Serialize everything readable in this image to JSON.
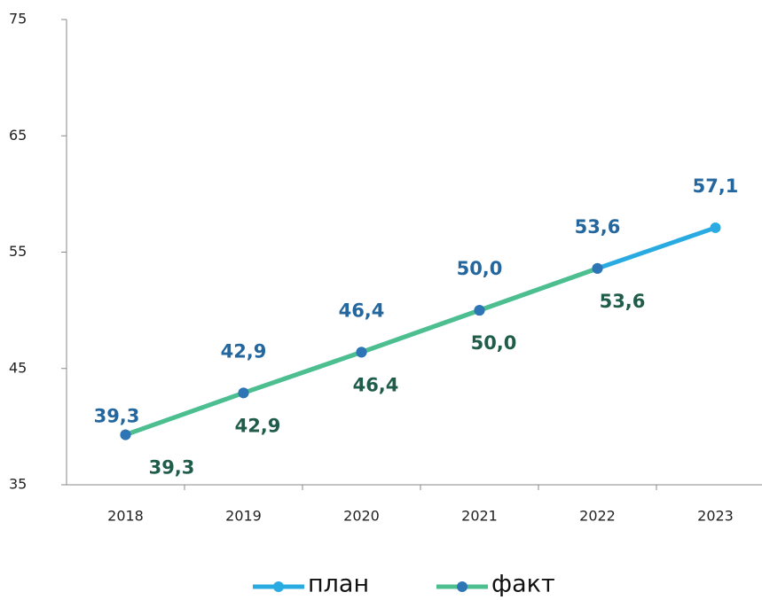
{
  "chart_data": {
    "type": "line",
    "categories": [
      "2018",
      "2019",
      "2020",
      "2021",
      "2022",
      "2023"
    ],
    "series": [
      {
        "name": "план",
        "color": "#29abe2",
        "marker_color": "#29abe2",
        "values": [
          39.3,
          42.9,
          46.4,
          50.0,
          53.6,
          57.1
        ],
        "value_labels": [
          "39,3",
          "42,9",
          "46,4",
          "50,0",
          "53,6",
          "57,1"
        ],
        "label_color": "#24679e",
        "marker_colors": [
          "#2e75b6",
          "#2e75b6",
          "#2e75b6",
          "#2e75b6",
          "#2e75b6",
          "#29abe2"
        ]
      },
      {
        "name": "факт",
        "color": "#4dbf8f",
        "marker_color": "#2e75b6",
        "values": [
          39.3,
          42.9,
          46.4,
          50.0,
          53.6,
          null
        ],
        "value_labels": [
          "39,3",
          "42,9",
          "46,4",
          "50,0",
          "53,6",
          null
        ],
        "label_color": "#1f5c4a"
      }
    ],
    "ylim": [
      35,
      75
    ],
    "yticks": [
      35,
      45,
      55,
      65,
      75
    ],
    "grid": false,
    "legend": "bottom"
  }
}
